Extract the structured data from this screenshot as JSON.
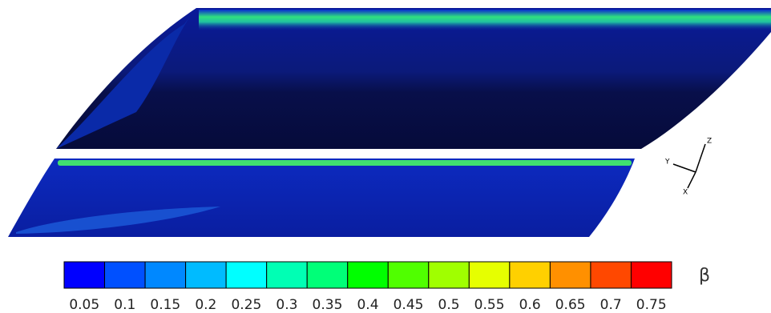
{
  "colorbar": {
    "label": "β",
    "levels": [
      0.05,
      0.1,
      0.15,
      0.2,
      0.25,
      0.3,
      0.35,
      0.4,
      0.45,
      0.5,
      0.55,
      0.6,
      0.65,
      0.7,
      0.75
    ],
    "colors": [
      "#0000ff",
      "#0050ff",
      "#0088ff",
      "#00bbff",
      "#00ffff",
      "#00ffb4",
      "#00ff78",
      "#00ff00",
      "#50ff00",
      "#a0ff00",
      "#e6ff00",
      "#ffd000",
      "#ff9000",
      "#ff4800",
      "#ff0000"
    ]
  },
  "triad": {
    "x": "X",
    "y": "Y",
    "z": "Z"
  }
}
